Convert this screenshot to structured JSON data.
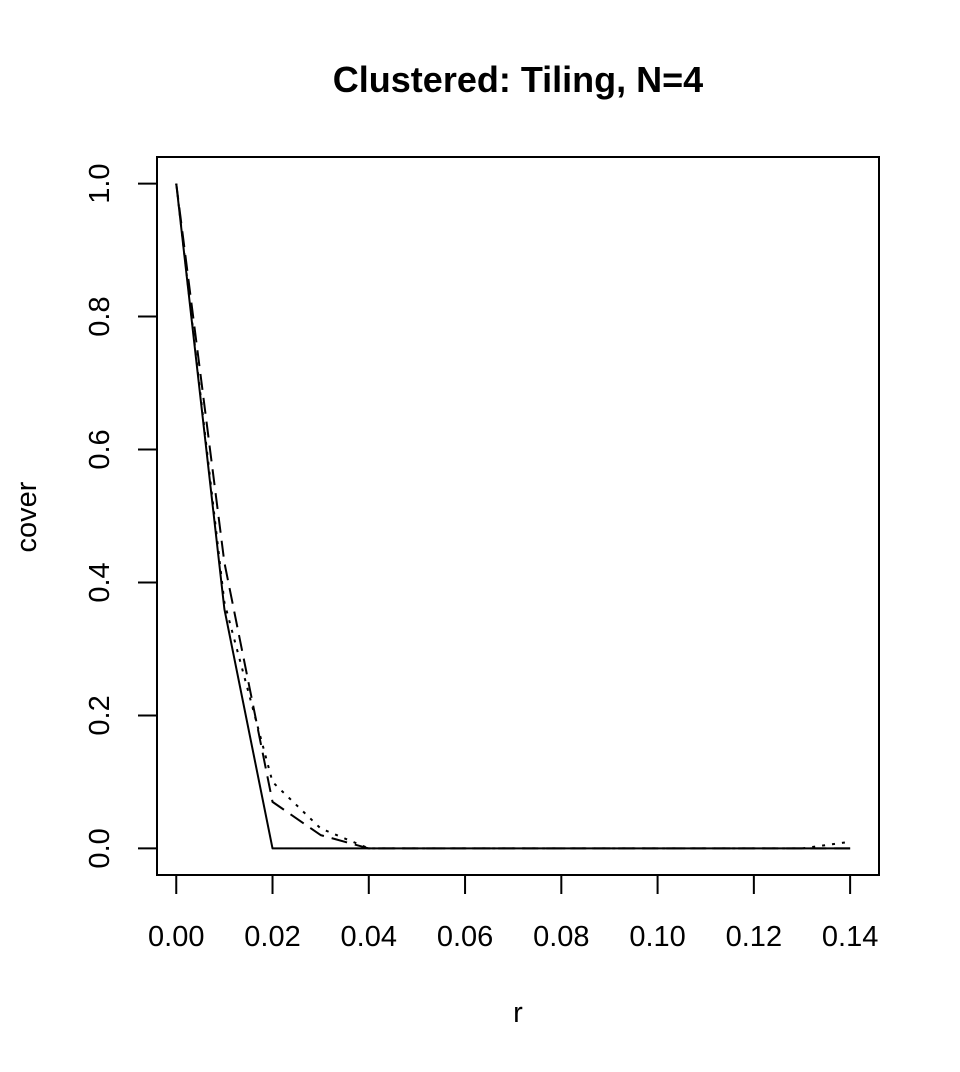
{
  "chart_data": {
    "type": "line",
    "title": "Clustered: Tiling, N=4",
    "xlabel": "r",
    "ylabel": "cover",
    "xlim": [
      -0.004,
      0.146
    ],
    "ylim": [
      -0.04,
      1.04
    ],
    "x_ticks": [
      0.0,
      0.02,
      0.04,
      0.06,
      0.08,
      0.1,
      0.12,
      0.14
    ],
    "x_tick_labels": [
      "0.00",
      "0.02",
      "0.04",
      "0.06",
      "0.08",
      "0.10",
      "0.12",
      "0.14"
    ],
    "y_ticks": [
      0.0,
      0.2,
      0.4,
      0.6,
      0.8,
      1.0
    ],
    "y_tick_labels": [
      "0.0",
      "0.2",
      "0.4",
      "0.6",
      "0.8",
      "1.0"
    ],
    "grid": false,
    "legend": "none",
    "x": [
      0.0,
      0.01,
      0.02,
      0.03,
      0.04,
      0.05,
      0.06,
      0.07,
      0.08,
      0.09,
      0.1,
      0.11,
      0.12,
      0.13,
      0.14
    ],
    "series": [
      {
        "line_style": "solid",
        "values": [
          1.0,
          0.36,
          0.0,
          0.0,
          0.0,
          0.0,
          0.0,
          0.0,
          0.0,
          0.0,
          0.0,
          0.0,
          0.0,
          0.0,
          0.0
        ]
      },
      {
        "line_style": "dashed",
        "values": [
          1.0,
          0.43,
          0.07,
          0.02,
          0.0,
          0.0,
          0.0,
          0.0,
          0.0,
          0.0,
          0.0,
          0.0,
          0.0,
          0.0,
          0.0
        ]
      },
      {
        "line_style": "dotted",
        "values": [
          1.0,
          0.37,
          0.1,
          0.03,
          0.0,
          0.0,
          0.0,
          0.0,
          0.0,
          0.0,
          0.0,
          0.0,
          0.0,
          0.0,
          0.01
        ]
      }
    ]
  }
}
